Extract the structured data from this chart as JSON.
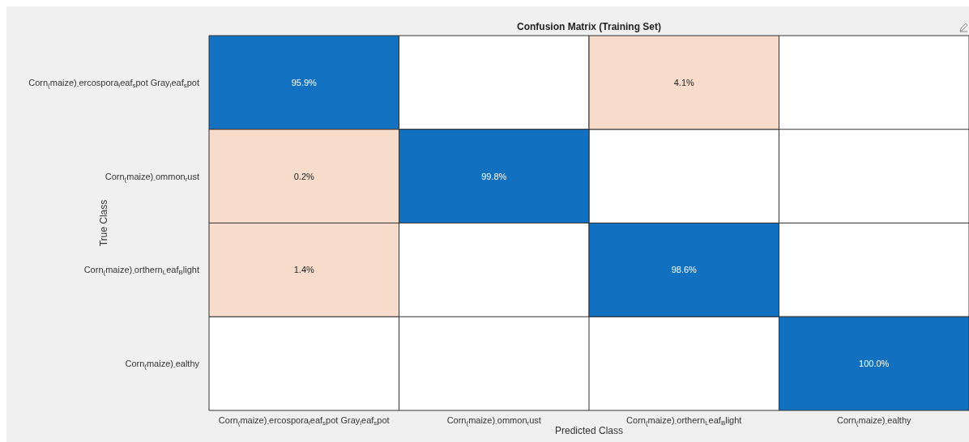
{
  "chart_data": {
    "type": "heatmap",
    "title": "Confusion Matrix (Training Set)",
    "xlabel": "Predicted Class",
    "ylabel": "True Class",
    "categories": [
      "Corn$_{(}$maize)$_{-}$ercospora$_{l}$eaf$_{s}$pot  Gray$_{l}$eaf$_{s}$pot",
      "Corn$_{(}$maize)$_{-}$ommon$_{r}$ust",
      "Corn$_{(}$maize)$_{-}$orthern$_{L}$eaf$_{B}$light",
      "Corn$_{(}$maize)$_{-}$ealthy"
    ],
    "y_categories": [
      "Corn$_{(}$maize)$_{-}$ercospora$_{l}$eaf$_{s}$pot  Gray$_{l}$eaf$_{s}$pot",
      "Corn$_{(}$maize)$_{-}$ommon$_{r}$ust",
      "Corn$_{(}$maize)$_{-}$orthern$_{L}$eaf$_{B}$light",
      "Corn$_{(}$maize)$_{-}$ealthy"
    ],
    "cells": [
      [
        95.9,
        null,
        4.1,
        null
      ],
      [
        0.2,
        99.8,
        null,
        null
      ],
      [
        1.4,
        null,
        98.6,
        null
      ],
      [
        null,
        null,
        null,
        100
      ]
    ],
    "cell_labels": [
      [
        "95.9%",
        null,
        "4.1%",
        null
      ],
      [
        " 0.2%",
        "99.8%",
        null,
        null
      ],
      [
        "1.4%",
        null,
        "98.6%",
        null
      ],
      [
        null,
        null,
        null,
        "100.0%"
      ]
    ],
    "colors": [
      "#1170c0",
      "#f6d8c6"
    ]
  }
}
